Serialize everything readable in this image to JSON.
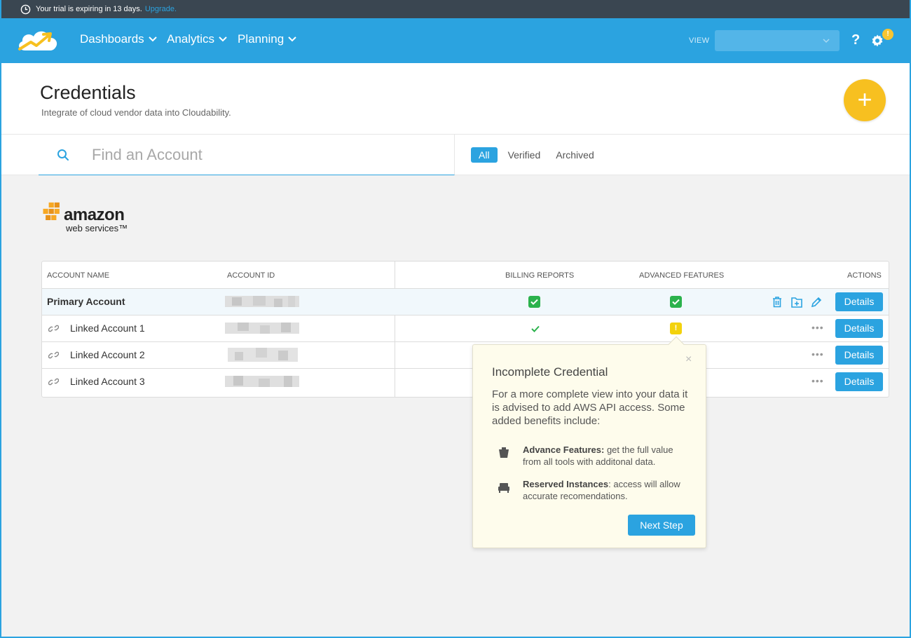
{
  "trial": {
    "text": "Your trial is expiring in 13 days.",
    "link": "Upgrade."
  },
  "nav": {
    "items": [
      {
        "label": "Dashboards"
      },
      {
        "label": "Analytics"
      },
      {
        "label": "Planning"
      }
    ],
    "view_label": "VIEW",
    "view_value": "",
    "help": "?",
    "gear_badge": "!"
  },
  "header": {
    "title": "Credentials",
    "subtitle": "Integrate of cloud vendor data into Cloudability.",
    "add": "+"
  },
  "search": {
    "placeholder": "Find an Account"
  },
  "filters": [
    "All",
    "Verified",
    "Archived"
  ],
  "vendor": {
    "logo_word": "amazon",
    "logo_sub": "web services™"
  },
  "table": {
    "headers": {
      "account_name": "ACCOUNT NAME",
      "account_id": "ACCOUNT ID",
      "billing": "BILLING REPORTS",
      "advanced": "ADVANCED FEATURES",
      "actions": "ACTIONS"
    },
    "rows": [
      {
        "name": "Primary Account",
        "details": "Details"
      },
      {
        "name": "Linked Account 1",
        "details": "Details"
      },
      {
        "name": "Linked Account 2",
        "details": "Details"
      },
      {
        "name": "Linked Account 3",
        "details": "Details"
      }
    ],
    "dots": "•••"
  },
  "popover": {
    "close": "×",
    "title": "Incomplete Credential",
    "body": "For a more complete view into your data it is advised to add AWS API access. Some added benefits include:",
    "items": [
      {
        "bold": "Advance Features:",
        "text": " get the full value from all tools with additonal data."
      },
      {
        "bold": "Reserved Instances",
        "text": ": access will allow accurate recomendations."
      }
    ],
    "next": "Next Step"
  },
  "colors": {
    "accent": "#2ba3e0",
    "trial_bar": "#3a4651",
    "add_button": "#f7c020",
    "check": "#2bb24c",
    "warning": "#f3d20c"
  }
}
